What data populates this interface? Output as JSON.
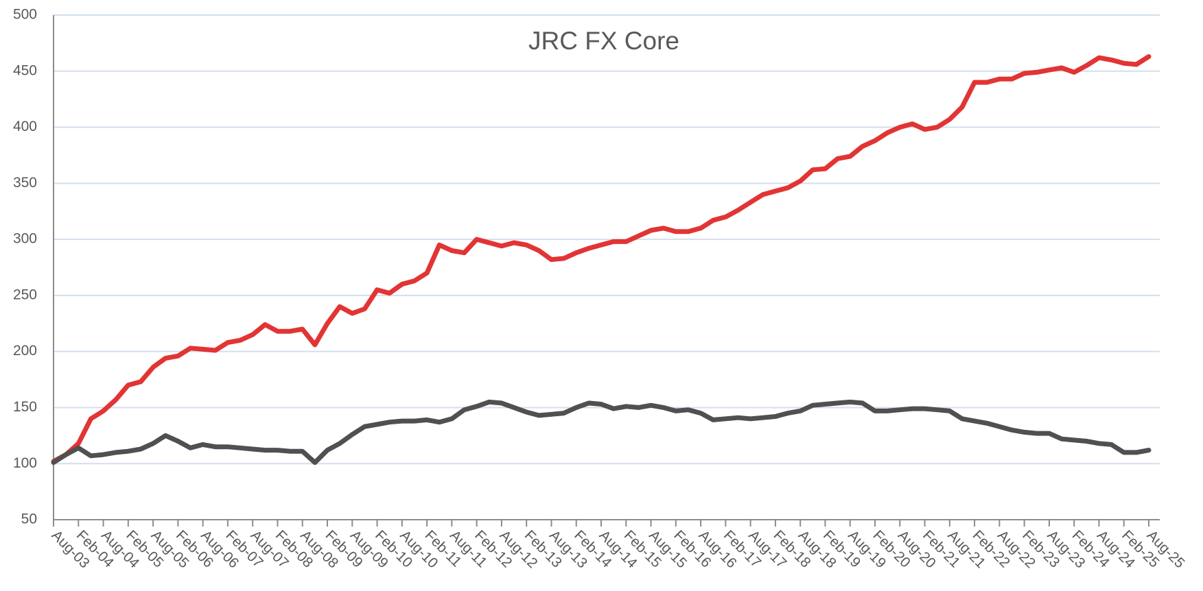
{
  "chart_data": {
    "type": "line",
    "title": "JRC FX Core",
    "categories": [
      "Aug-03",
      null,
      "Feb-04",
      null,
      "Aug-04",
      null,
      "Feb-05",
      null,
      "Aug-05",
      null,
      "Feb-06",
      null,
      "Aug-06",
      null,
      "Feb-07",
      null,
      "Aug-07",
      null,
      "Feb-08",
      null,
      "Aug-08",
      null,
      "Feb-09",
      null,
      "Aug-09",
      null,
      "Feb-10",
      null,
      "Aug-10",
      null,
      "Feb-11",
      null,
      "Aug-11",
      null,
      "Feb-12",
      null,
      "Aug-12",
      null,
      "Feb-13",
      null,
      "Aug-13",
      null,
      "Feb-14",
      null,
      "Aug-14",
      null,
      "Feb-15",
      null,
      "Aug-15",
      null,
      "Feb-16",
      null,
      "Aug-16",
      null,
      "Feb-17",
      null,
      "Aug-17",
      null,
      "Feb-18",
      null,
      "Aug-18",
      null,
      "Feb-19",
      null,
      "Aug-19",
      null,
      "Feb-20",
      null,
      "Aug-20",
      null,
      "Feb-21",
      null,
      "Aug-21",
      null,
      "Feb-22",
      null,
      "Aug-22",
      null,
      "Feb-23",
      null,
      "Aug-23",
      null,
      "Feb-24",
      null,
      "Aug-24",
      null,
      "Feb-25",
      null,
      "Aug-25"
    ],
    "series": [
      {
        "color": "#e23434",
        "values": [
          102,
          108,
          118,
          140,
          147,
          157,
          170,
          173,
          186,
          194,
          196,
          203,
          202,
          201,
          208,
          210,
          215,
          224,
          218,
          218,
          220,
          206,
          225,
          240,
          234,
          238,
          255,
          252,
          260,
          263,
          270,
          295,
          290,
          288,
          300,
          297,
          294,
          297,
          295,
          290,
          282,
          283,
          288,
          292,
          295,
          298,
          298,
          303,
          308,
          310,
          307,
          307,
          310,
          317,
          320,
          326,
          333,
          340,
          343,
          346,
          352,
          362,
          363,
          372,
          374,
          383,
          388,
          395,
          400,
          403,
          398,
          400,
          407,
          418,
          440,
          440,
          443,
          443,
          448,
          449,
          451,
          453,
          449,
          455,
          462,
          460,
          457,
          456,
          463
        ]
      },
      {
        "color": "#505050",
        "values": [
          101,
          108,
          114,
          107,
          108,
          110,
          111,
          113,
          118,
          125,
          120,
          114,
          117,
          115,
          115,
          114,
          113,
          112,
          112,
          111,
          111,
          101,
          112,
          118,
          126,
          133,
          135,
          137,
          138,
          138,
          139,
          137,
          140,
          148,
          151,
          155,
          154,
          150,
          146,
          143,
          144,
          145,
          150,
          154,
          153,
          149,
          151,
          150,
          152,
          150,
          147,
          148,
          145,
          139,
          140,
          141,
          140,
          141,
          142,
          145,
          147,
          152,
          153,
          154,
          155,
          154,
          147,
          147,
          148,
          149,
          149,
          148,
          147,
          140,
          138,
          136,
          133,
          130,
          128,
          127,
          127,
          122,
          121,
          120,
          118,
          117,
          110,
          110,
          112
        ]
      }
    ],
    "ylim": [
      50,
      500
    ],
    "yticks": [
      50,
      100,
      150,
      200,
      250,
      300,
      350,
      400,
      450,
      500
    ],
    "grid": true
  }
}
